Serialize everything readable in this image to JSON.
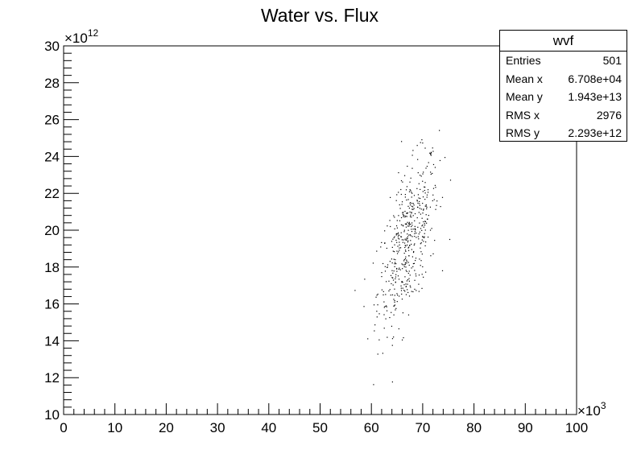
{
  "chart_data": {
    "type": "scatter",
    "title": "Water vs. Flux",
    "xlabel": "",
    "ylabel": "",
    "xlim": [
      0,
      100
    ],
    "ylim": [
      10,
      30
    ],
    "x_multiplier": "×10",
    "x_multiplier_exp": "3",
    "y_multiplier": "×10",
    "y_multiplier_exp": "12",
    "x_ticks": [
      "0",
      "10",
      "20",
      "30",
      "40",
      "50",
      "60",
      "70",
      "80",
      "90",
      "100"
    ],
    "y_ticks": [
      "10",
      "12",
      "14",
      "16",
      "18",
      "20",
      "22",
      "24",
      "26",
      "28",
      "30"
    ],
    "marker_color": "#000000",
    "distribution": {
      "mean_x": 67.08,
      "mean_y": 19.43,
      "rms_x": 2.976,
      "rms_y": 2.293,
      "n": 501
    }
  },
  "stats": {
    "title": "wvf",
    "rows": [
      {
        "label": "Entries",
        "value": "501"
      },
      {
        "label": "Mean x",
        "value": "6.708e+04"
      },
      {
        "label": "Mean y",
        "value": "1.943e+13"
      },
      {
        "label": "RMS x",
        "value": "2976"
      },
      {
        "label": "RMS y",
        "value": "2.293e+12"
      }
    ]
  }
}
